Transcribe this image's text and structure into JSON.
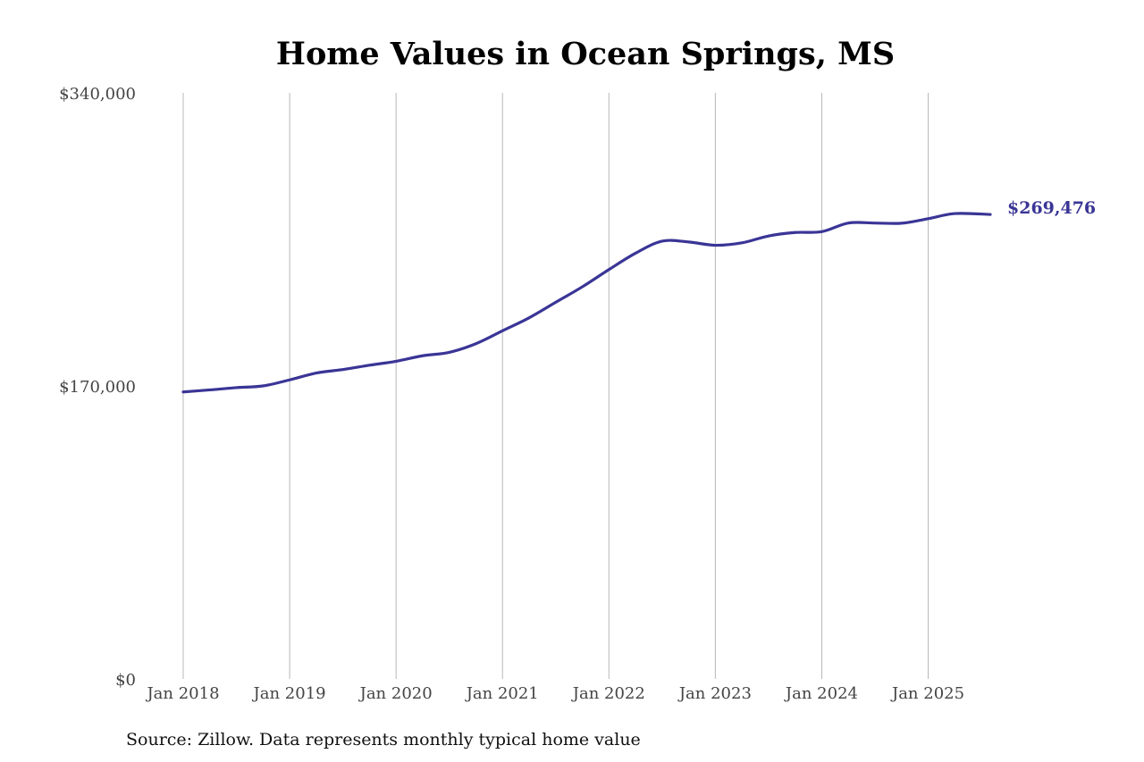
{
  "chart_data": {
    "type": "line",
    "title": "Home Values in Ocean Springs, MS",
    "xlabel": "",
    "ylabel": "",
    "ylim": [
      0,
      340000
    ],
    "y_ticks": [
      {
        "value": 0,
        "label": "$0"
      },
      {
        "value": 170000,
        "label": "$170,000"
      },
      {
        "value": 340000,
        "label": "$340,000"
      }
    ],
    "x_range": [
      "2018-01",
      "2025-08"
    ],
    "x_ticks": [
      {
        "date": "2018-01",
        "label": "Jan 2018"
      },
      {
        "date": "2019-01",
        "label": "Jan 2019"
      },
      {
        "date": "2020-01",
        "label": "Jan 2020"
      },
      {
        "date": "2021-01",
        "label": "Jan 2021"
      },
      {
        "date": "2022-01",
        "label": "Jan 2022"
      },
      {
        "date": "2023-01",
        "label": "Jan 2023"
      },
      {
        "date": "2024-01",
        "label": "Jan 2024"
      },
      {
        "date": "2025-01",
        "label": "Jan 2025"
      }
    ],
    "grid": {
      "vertical": true,
      "horizontal": false
    },
    "series": [
      {
        "color": "#3a3596",
        "points": [
          {
            "x": "2018-01",
            "y": 166500
          },
          {
            "x": "2018-04",
            "y": 167700
          },
          {
            "x": "2018-07",
            "y": 169000
          },
          {
            "x": "2018-10",
            "y": 170000
          },
          {
            "x": "2019-01",
            "y": 173500
          },
          {
            "x": "2019-04",
            "y": 177500
          },
          {
            "x": "2019-07",
            "y": 179500
          },
          {
            "x": "2019-10",
            "y": 182000
          },
          {
            "x": "2020-01",
            "y": 184300
          },
          {
            "x": "2020-04",
            "y": 187500
          },
          {
            "x": "2020-07",
            "y": 189500
          },
          {
            "x": "2020-10",
            "y": 194500
          },
          {
            "x": "2021-01",
            "y": 202000
          },
          {
            "x": "2021-04",
            "y": 209500
          },
          {
            "x": "2021-07",
            "y": 218500
          },
          {
            "x": "2021-10",
            "y": 227500
          },
          {
            "x": "2022-01",
            "y": 237500
          },
          {
            "x": "2022-04",
            "y": 247000
          },
          {
            "x": "2022-07",
            "y": 254000
          },
          {
            "x": "2022-10",
            "y": 253500
          },
          {
            "x": "2023-01",
            "y": 251600
          },
          {
            "x": "2023-04",
            "y": 253000
          },
          {
            "x": "2023-07",
            "y": 257000
          },
          {
            "x": "2023-10",
            "y": 259000
          },
          {
            "x": "2024-01",
            "y": 259500
          },
          {
            "x": "2024-04",
            "y": 264500
          },
          {
            "x": "2024-07",
            "y": 264500
          },
          {
            "x": "2024-10",
            "y": 264400
          },
          {
            "x": "2025-01",
            "y": 267000
          },
          {
            "x": "2025-04",
            "y": 270000
          },
          {
            "x": "2025-08",
            "y": 269476
          }
        ]
      }
    ],
    "end_label": "$269,476",
    "source": "Source: Zillow. Data represents monthly typical home value"
  }
}
